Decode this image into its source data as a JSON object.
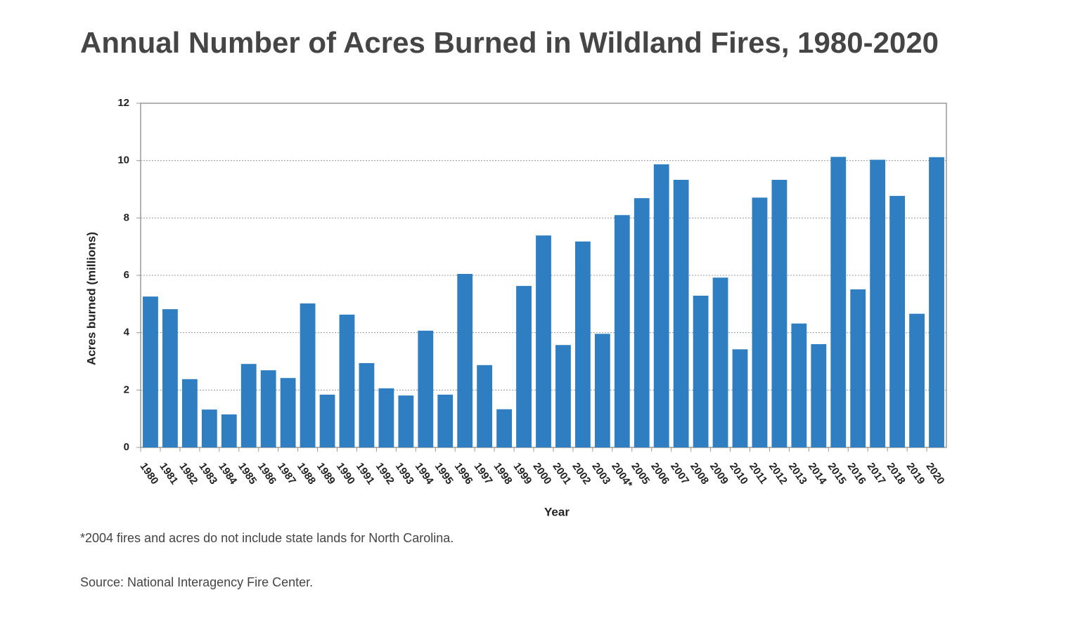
{
  "chart_data": {
    "type": "bar",
    "title": "Annual Number of Acres Burned in Wildland Fires, 1980-2020",
    "x_label": "Year",
    "y_label": "Acres burned (millions)",
    "categories": [
      "1980",
      "1981",
      "1982",
      "1983",
      "1984",
      "1985",
      "1986",
      "1987",
      "1988",
      "1989",
      "1990",
      "1991",
      "1992",
      "1993",
      "1994",
      "1995",
      "1996",
      "1997",
      "1998",
      "1999",
      "2000",
      "2001",
      "2002",
      "2003",
      "2004*",
      "2005",
      "2006",
      "2007",
      "2008",
      "2009",
      "2010",
      "2011",
      "2012",
      "2013",
      "2014",
      "2015",
      "2016",
      "2017",
      "2018",
      "2019",
      "2020"
    ],
    "values": [
      5.26,
      4.82,
      2.38,
      1.32,
      1.15,
      2.91,
      2.69,
      2.42,
      5.02,
      1.84,
      4.63,
      2.94,
      2.06,
      1.81,
      4.07,
      1.84,
      6.05,
      2.87,
      1.33,
      5.63,
      7.39,
      3.57,
      7.18,
      3.96,
      8.1,
      8.69,
      9.87,
      9.33,
      5.29,
      5.92,
      3.42,
      8.71,
      9.33,
      4.32,
      3.6,
      10.13,
      5.51,
      10.03,
      8.77,
      4.66,
      10.12
    ],
    "color": "#2f7ec1",
    "ylim": [
      0,
      12
    ],
    "yticks": [
      0,
      2,
      4,
      6,
      8,
      10,
      12
    ],
    "grid": true,
    "footnote": "*2004 fires and acres do not include state lands for North Carolina.",
    "source": "Source: National Interagency Fire Center."
  }
}
